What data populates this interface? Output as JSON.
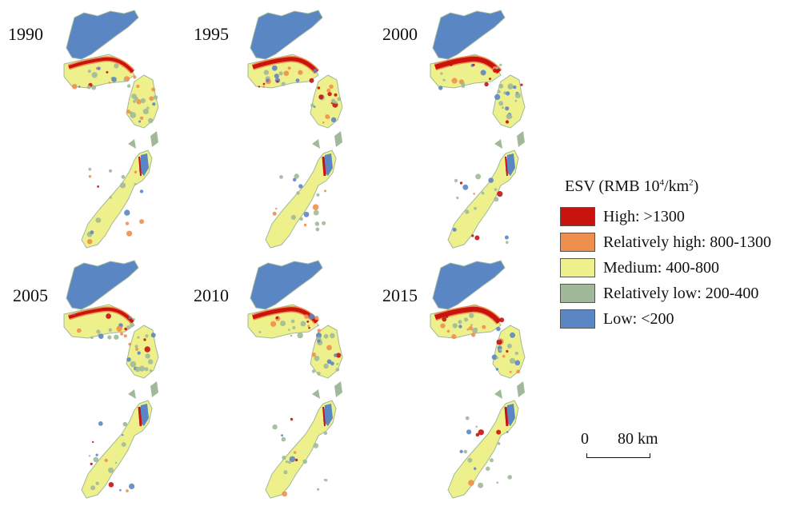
{
  "years": [
    "1990",
    "1995",
    "2000",
    "2005",
    "2010",
    "2015"
  ],
  "legend": {
    "title_prefix": "ESV (RMB 10",
    "title_sup1": "4",
    "title_mid": "/km",
    "title_sup2": "2",
    "title_suffix": ")",
    "items": [
      {
        "label": "High: >1300",
        "color": "#c8130f"
      },
      {
        "label": "Relatively high: 800-1300",
        "color": "#ef8f4d"
      },
      {
        "label": "Medium: 400-800",
        "color": "#eef08c"
      },
      {
        "label": "Relatively low: 200-400",
        "color": "#a1b99a"
      },
      {
        "label": "Low: <200",
        "color": "#5b86c4"
      }
    ]
  },
  "scale": {
    "zero": "0",
    "distance": "80 km"
  },
  "colors": {
    "high": "#c8130f",
    "rel_high": "#ef8f4d",
    "medium": "#eef08c",
    "rel_low": "#a1b99a",
    "low": "#5b86c4"
  }
}
